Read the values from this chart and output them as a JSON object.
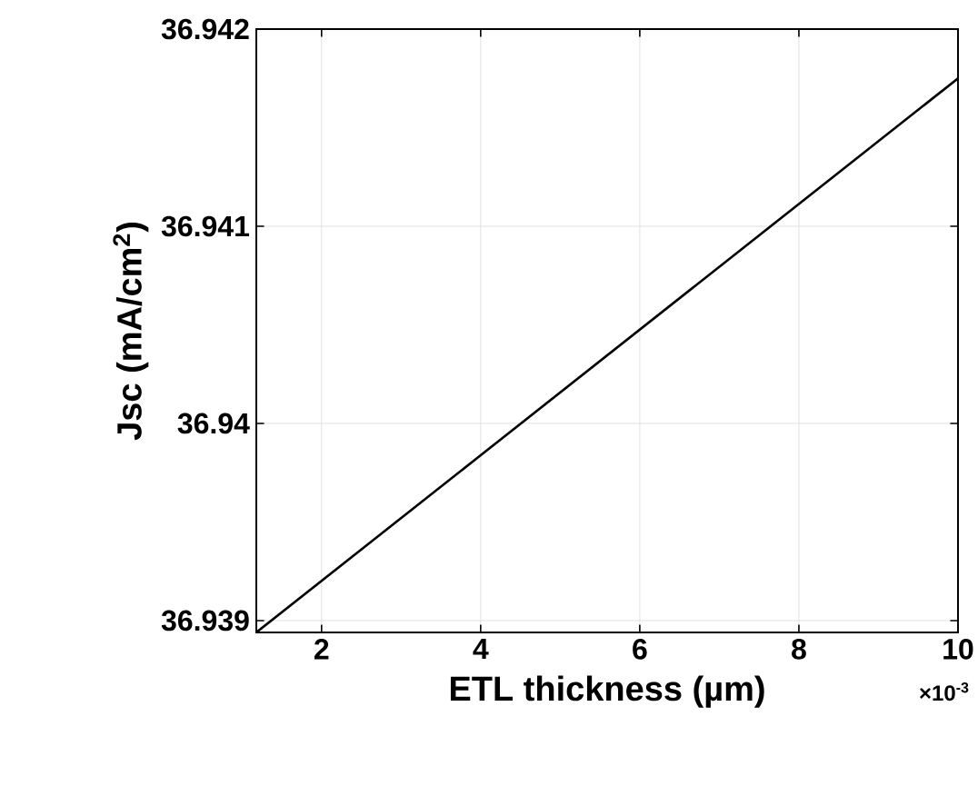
{
  "chart_data": {
    "type": "line",
    "xlabel": "ETL thickness (µm)",
    "ylabel": "Jsc (mA/cm$^{2}$)",
    "x": [
      1.18,
      10
    ],
    "series": [
      {
        "color": "#000000",
        "values": [
          36.93894,
          36.94175
        ]
      }
    ],
    "xlim": [
      1.18,
      10
    ],
    "ylim": [
      36.93894,
      36.942
    ],
    "xticks": [
      2,
      4,
      6,
      8,
      10
    ],
    "yticks": [
      36.939,
      36.94,
      36.941,
      36.942
    ],
    "grid": true,
    "marker": "none",
    "line_style": "solid",
    "annotations": [
      "×10$^{-3}$"
    ]
  }
}
